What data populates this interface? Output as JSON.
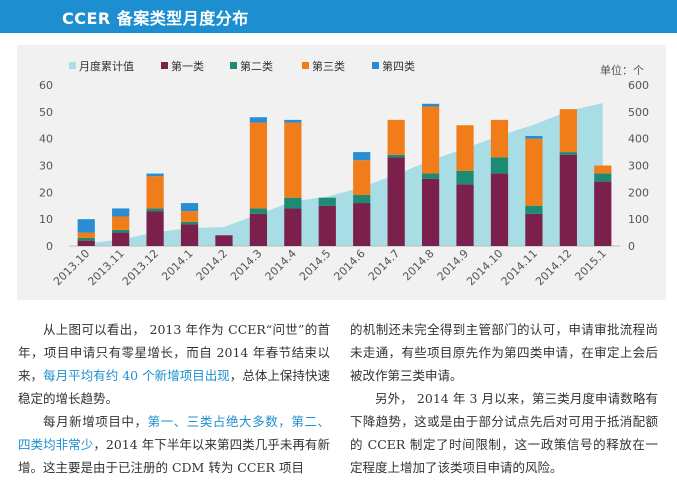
{
  "header": {
    "title": "CCER 备案类型月度分布"
  },
  "chart_data": {
    "type": "bar",
    "stacked": true,
    "unit_label": "单位：个",
    "categories": [
      "2013.10",
      "2013.11",
      "2013.12",
      "2014.1",
      "2014.2",
      "2014.3",
      "2014.4",
      "2014.5",
      "2014.6",
      "2014.7",
      "2014.8",
      "2014.9",
      "2014.10",
      "2014.11",
      "2014.12",
      "2015.1"
    ],
    "series": [
      {
        "name": "第一类",
        "color": "#7b1f4b",
        "values": [
          2,
          5,
          13,
          8,
          4,
          12,
          14,
          15,
          16,
          33,
          25,
          23,
          27,
          12,
          34,
          24
        ]
      },
      {
        "name": "第二类",
        "color": "#1f8a74",
        "values": [
          1,
          1,
          1,
          1,
          0,
          2,
          4,
          3,
          3,
          1,
          2,
          5,
          6,
          3,
          1,
          3
        ]
      },
      {
        "name": "第三类",
        "color": "#f07d19",
        "values": [
          2,
          5,
          12,
          4,
          0,
          32,
          28,
          0,
          13,
          13,
          25,
          17,
          14,
          25,
          16,
          3
        ]
      },
      {
        "name": "第四类",
        "color": "#2a8dd4",
        "values": [
          5,
          3,
          1,
          3,
          0,
          2,
          1,
          0,
          3,
          0,
          1,
          0,
          0,
          1,
          0,
          0
        ]
      }
    ],
    "area_series": {
      "name": "月度累计值",
      "color": "#a9dde6",
      "values": [
        10,
        24,
        51,
        67,
        71,
        119,
        166,
        184,
        219,
        266,
        319,
        364,
        411,
        452,
        503,
        533
      ]
    },
    "ylim_left": [
      0,
      60
    ],
    "ylim_right": [
      0,
      600
    ],
    "yticks_left": [
      "0",
      "10",
      "20",
      "30",
      "40",
      "50",
      "60"
    ],
    "yticks_right": [
      "0",
      "100",
      "200",
      "300",
      "400",
      "500",
      "600"
    ]
  },
  "text": {
    "p1_a": "从上图可以看出， 2013 年作为 CCER“问世”的首年，项目申请只有零星增长，而自 2014 年春节结束以来，",
    "p1_hl": "每月平均有约 40 个新增项目出现",
    "p1_b": "，总体上保持快速稳定的增长趋势。",
    "p2_a": "每月新增项目中，",
    "p2_hl": "第一、三类占绝大多数，第二、四类均非常少",
    "p2_b": "，2014 年下半年以来第四类几乎未再有新增。这主要是由于已注册的 CDM 转为 CCER 项目",
    "p3": "的机制还未完全得到主管部门的认可，申请审批流程尚未走通，有些项目原先作为第四类申请，在审定上会后被改作第三类申请。",
    "p4": "另外， 2014 年 3 月以来，第三类月度申请数略有下降趋势，这或是由于部分试点先后对可用于抵消配额的 CCER 制定了时间限制，这一政策信号的释放在一定程度上增加了该类项目申请的风险。"
  }
}
